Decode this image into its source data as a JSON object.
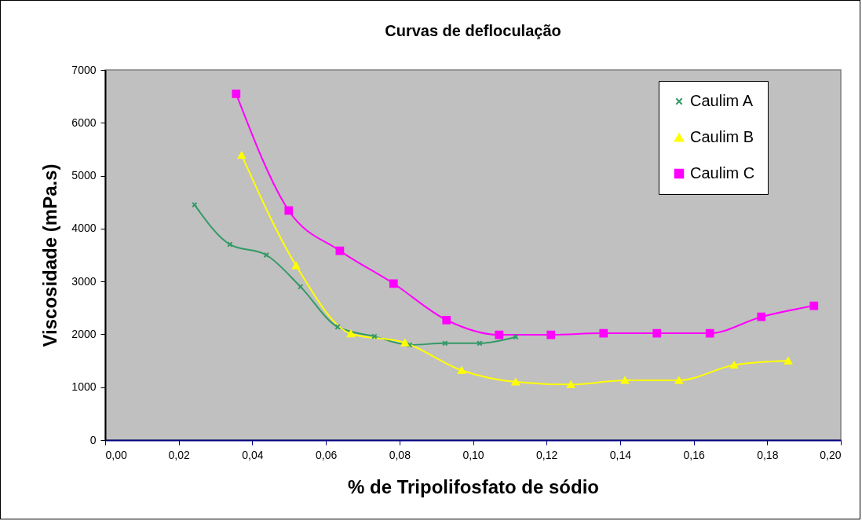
{
  "chart_data": {
    "type": "line",
    "title": "Curvas de defloculação",
    "xlabel": "% de Tripolifosfato de sódio",
    "ylabel": "Viscosidade (mPa.s)",
    "xlim": [
      0,
      0.2
    ],
    "xticks": [
      {
        "value": 0,
        "label": "0,00"
      },
      {
        "value": 0.02,
        "label": "0,02"
      },
      {
        "value": 0.04,
        "label": "0,04"
      },
      {
        "value": 0.06,
        "label": "0,06"
      },
      {
        "value": 0.08,
        "label": "0,08"
      },
      {
        "value": 0.1,
        "label": "0,10"
      },
      {
        "value": 0.12,
        "label": "0,12"
      },
      {
        "value": 0.14,
        "label": "0,14"
      },
      {
        "value": 0.16,
        "label": "0,16"
      },
      {
        "value": 0.18,
        "label": "0,18"
      },
      {
        "value": 0.2,
        "label": "0,20"
      }
    ],
    "ylim": [
      0,
      7000
    ],
    "yticks": [
      0,
      1000,
      2000,
      3000,
      4000,
      5000,
      6000,
      7000
    ],
    "grid": false,
    "legend": "top right",
    "series": [
      {
        "name": "Caulim A",
        "color": "#339966",
        "marker": "cross",
        "x": [
          0.0243,
          0.0339,
          0.0438,
          0.0531,
          0.0632,
          0.0732,
          0.0828,
          0.0924,
          0.1018,
          0.1116
        ],
        "values": [
          4450,
          3700,
          3500,
          2900,
          2140,
          1960,
          1800,
          1830,
          1830,
          1950
        ]
      },
      {
        "name": "Caulim B",
        "color": "#ffff00",
        "marker": "triangle",
        "x": [
          0.0371,
          0.0519,
          0.0668,
          0.0815,
          0.0969,
          0.1116,
          0.1266,
          0.1413,
          0.156,
          0.171,
          0.1857
        ],
        "values": [
          5390,
          3300,
          2010,
          1840,
          1320,
          1100,
          1050,
          1130,
          1130,
          1420,
          1500
        ]
      },
      {
        "name": "Caulim C",
        "color": "#ff00ff",
        "marker": "square",
        "x": [
          0.0356,
          0.0499,
          0.0638,
          0.0784,
          0.0928,
          0.1071,
          0.1212,
          0.1355,
          0.15,
          0.1644,
          0.1784,
          0.1927
        ],
        "values": [
          6550,
          4340,
          3580,
          2960,
          2270,
          1990,
          1990,
          2020,
          2020,
          2020,
          2330,
          2540
        ]
      }
    ]
  }
}
